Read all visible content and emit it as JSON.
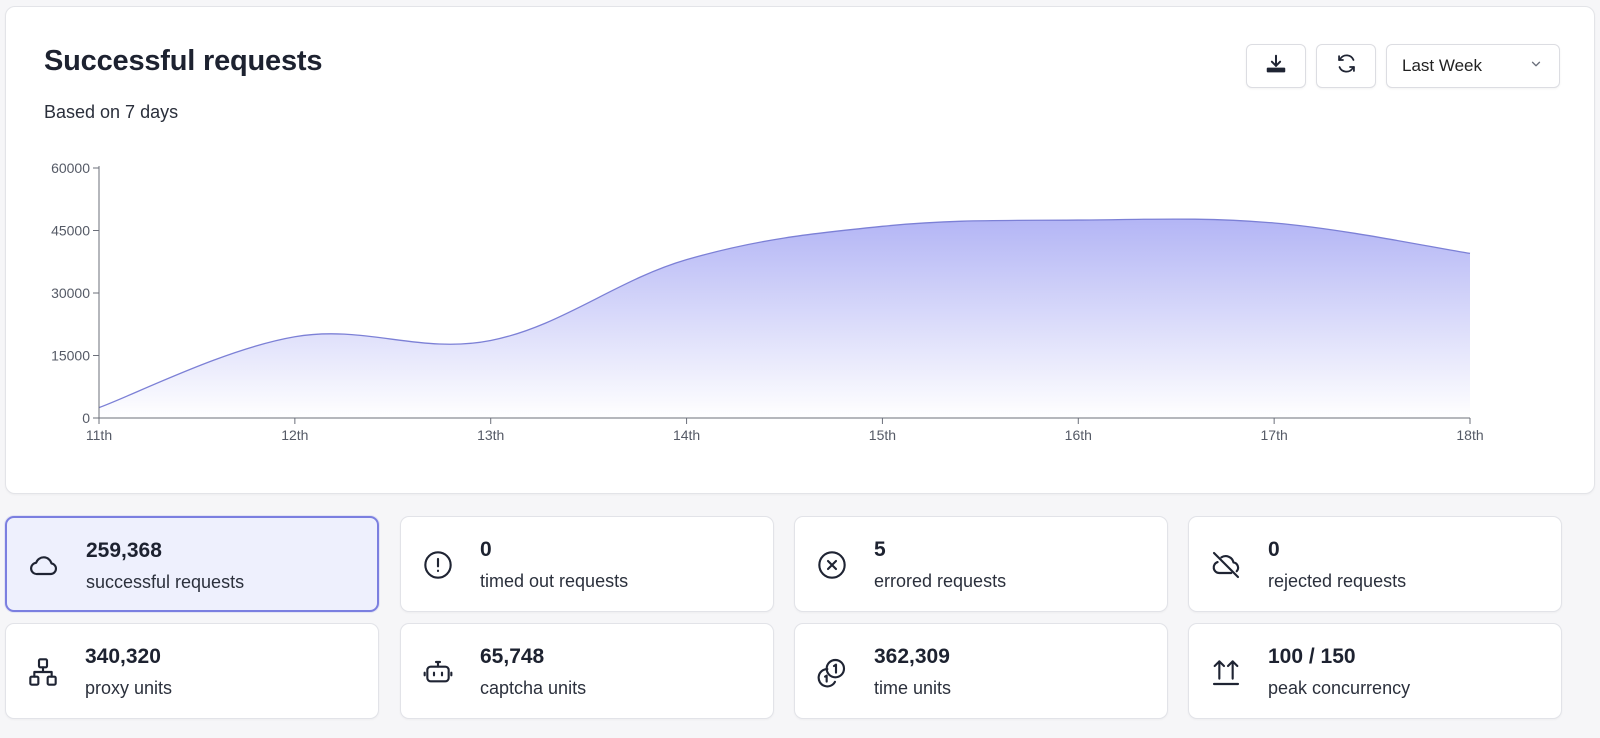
{
  "card": {
    "title": "Successful requests",
    "subtitle": "Based on 7 days"
  },
  "toolbar": {
    "download_icon": "download-icon",
    "refresh_icon": "refresh-icon",
    "range_select": {
      "value": "Last Week",
      "icon": "chevron-down-icon"
    }
  },
  "colors": {
    "accent": "#7b7fe0",
    "area_fill_top": "#b9bbf6",
    "area_stroke": "#7c80d6",
    "active_card_bg": "#eef0fd"
  },
  "chart_data": {
    "type": "area",
    "title": "",
    "xlabel": "",
    "ylabel": "",
    "categories": [
      "11th",
      "12th",
      "13th",
      "14th",
      "15th",
      "16th",
      "17th",
      "18th"
    ],
    "values": [
      2500,
      19500,
      18600,
      38000,
      46000,
      47500,
      46800,
      39500
    ],
    "ylim": [
      0,
      60000
    ],
    "yticks": [
      "60000",
      "45000",
      "30000",
      "15000",
      "0"
    ],
    "ytick_values": [
      60000,
      45000,
      30000,
      15000,
      0
    ],
    "grid": false,
    "legend": "none"
  },
  "stats": [
    {
      "value": "259,368",
      "label": "successful requests",
      "icon": "cloud-icon",
      "active": true
    },
    {
      "value": "0",
      "label": "timed out requests",
      "icon": "alert-circle-icon",
      "active": false
    },
    {
      "value": "5",
      "label": "errored requests",
      "icon": "x-circle-icon",
      "active": false
    },
    {
      "value": "0",
      "label": "rejected requests",
      "icon": "cloud-off-icon",
      "active": false
    },
    {
      "value": "340,320",
      "label": "proxy units",
      "icon": "network-icon",
      "active": false
    },
    {
      "value": "65,748",
      "label": "captcha units",
      "icon": "bot-icon",
      "active": false
    },
    {
      "value": "362,309",
      "label": "time units",
      "icon": "coins-icon",
      "active": false
    },
    {
      "value": "100 / 150",
      "label": "peak concurrency",
      "icon": "arrows-up-icon",
      "active": false
    }
  ]
}
